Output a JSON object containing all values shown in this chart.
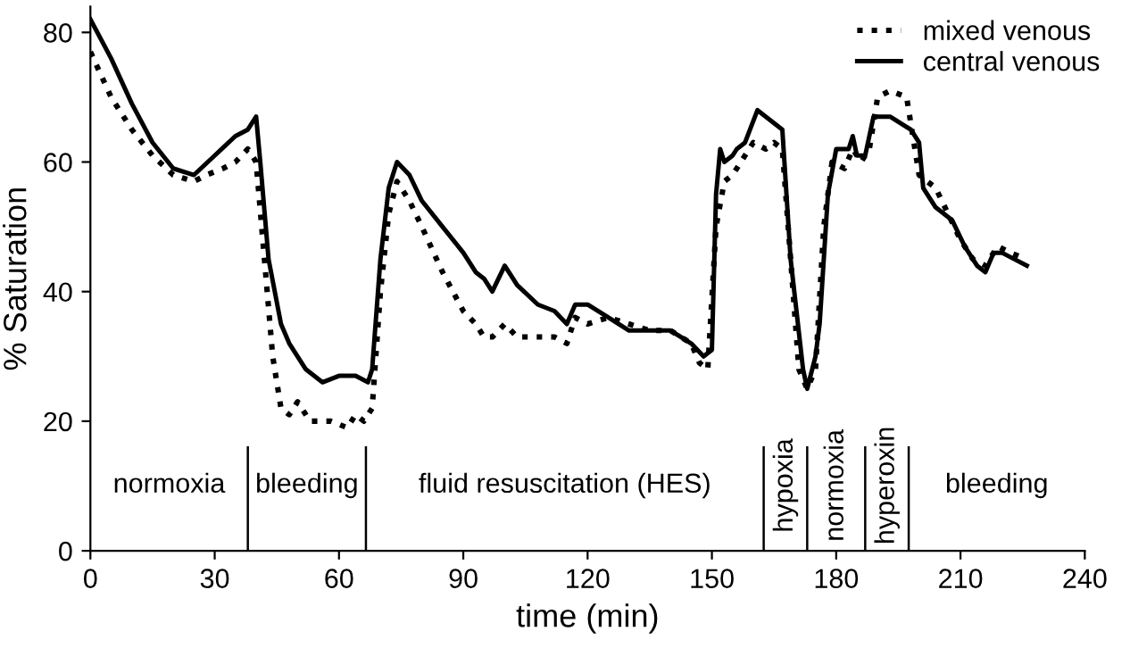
{
  "chart_data": {
    "type": "line",
    "xlabel": "time (min)",
    "ylabel": "% Saturation",
    "xlim": [
      0,
      240
    ],
    "xticks": [
      0,
      30,
      60,
      90,
      120,
      150,
      180,
      210,
      240
    ],
    "ylim": [
      0,
      84
    ],
    "yticks": [
      0,
      20,
      40,
      60,
      80
    ],
    "grid": false,
    "legend": "top right",
    "marker": "none",
    "series": [
      {
        "name": "mixed venous",
        "color": "#000000",
        "line_style": "dotted",
        "x": [
          0,
          5,
          10,
          15,
          20,
          25,
          28,
          32,
          35,
          38,
          40,
          42,
          44,
          46,
          48,
          50,
          53,
          58,
          62,
          64,
          66,
          68,
          70,
          72,
          74,
          77,
          80,
          85,
          90,
          93,
          95,
          97,
          100,
          103,
          108,
          112,
          115,
          117,
          120,
          125,
          130,
          135,
          140,
          145,
          147,
          149,
          151,
          153,
          155,
          157,
          160,
          163,
          165,
          167,
          169,
          171,
          173,
          175,
          177,
          179,
          182,
          184,
          186,
          188,
          190,
          193,
          197,
          200,
          204,
          207,
          210,
          213,
          216,
          219,
          222,
          226
        ],
        "values": [
          77,
          70,
          65,
          61,
          58,
          57,
          58,
          59,
          60,
          62,
          60,
          45,
          30,
          22,
          21,
          23,
          20,
          20,
          19,
          21,
          20,
          22,
          40,
          52,
          57,
          54,
          50,
          43,
          37,
          35,
          33,
          33,
          35,
          33,
          33,
          33,
          32,
          36,
          35,
          36,
          35,
          34,
          34,
          32,
          29,
          28,
          50,
          57,
          58,
          60,
          63,
          62,
          63,
          62,
          45,
          28,
          25,
          28,
          50,
          60,
          59,
          62,
          60,
          62,
          70,
          71,
          70,
          58,
          56,
          52,
          48,
          45,
          44,
          47,
          46,
          45
        ]
      },
      {
        "name": "central venous",
        "color": "#000000",
        "line_style": "solid",
        "x": [
          0,
          5,
          10,
          15,
          20,
          25,
          30,
          35,
          38,
          40,
          41,
          43,
          46,
          48,
          52,
          56,
          60,
          64,
          67,
          68,
          70,
          72,
          74,
          77,
          80,
          85,
          90,
          93,
          95,
          97,
          100,
          103,
          108,
          112,
          115,
          117,
          120,
          125,
          130,
          140,
          145,
          148,
          150,
          151,
          152,
          153,
          155,
          156,
          158,
          161,
          163,
          165,
          167,
          169,
          172,
          173,
          175,
          176,
          178,
          180,
          183,
          184,
          185,
          187,
          189,
          193,
          198,
          200,
          201,
          204,
          208,
          211,
          214,
          216,
          218,
          220,
          223,
          226
        ],
        "values": [
          82,
          76,
          69,
          63,
          59,
          58,
          61,
          64,
          65,
          67,
          60,
          45,
          35,
          32,
          28,
          26,
          27,
          27,
          26,
          28,
          45,
          56,
          60,
          58,
          54,
          50,
          46,
          43,
          42,
          40,
          44,
          41,
          38,
          37,
          35,
          38,
          38,
          36,
          34,
          34,
          32,
          30,
          31,
          55,
          62,
          60,
          61,
          62,
          63,
          68,
          67,
          66,
          65,
          45,
          28,
          25,
          30,
          35,
          55,
          62,
          62,
          64,
          61,
          61,
          67,
          67,
          65,
          63,
          56,
          53,
          51,
          47,
          44,
          43,
          46,
          46,
          45,
          44
        ]
      }
    ],
    "ref_lines": [
      {
        "axis": "x",
        "value": 38
      },
      {
        "axis": "x",
        "value": 66.5
      },
      {
        "axis": "x",
        "value": 162.5
      },
      {
        "axis": "x",
        "value": 173
      },
      {
        "axis": "x",
        "value": 187
      },
      {
        "axis": "x",
        "value": 197.5
      }
    ],
    "annotations": [
      "normoxia",
      "bleeding",
      "fluid resuscitation (HES)",
      "hypoxia",
      "normoxia",
      "hyperoxin",
      "bleeding"
    ]
  }
}
